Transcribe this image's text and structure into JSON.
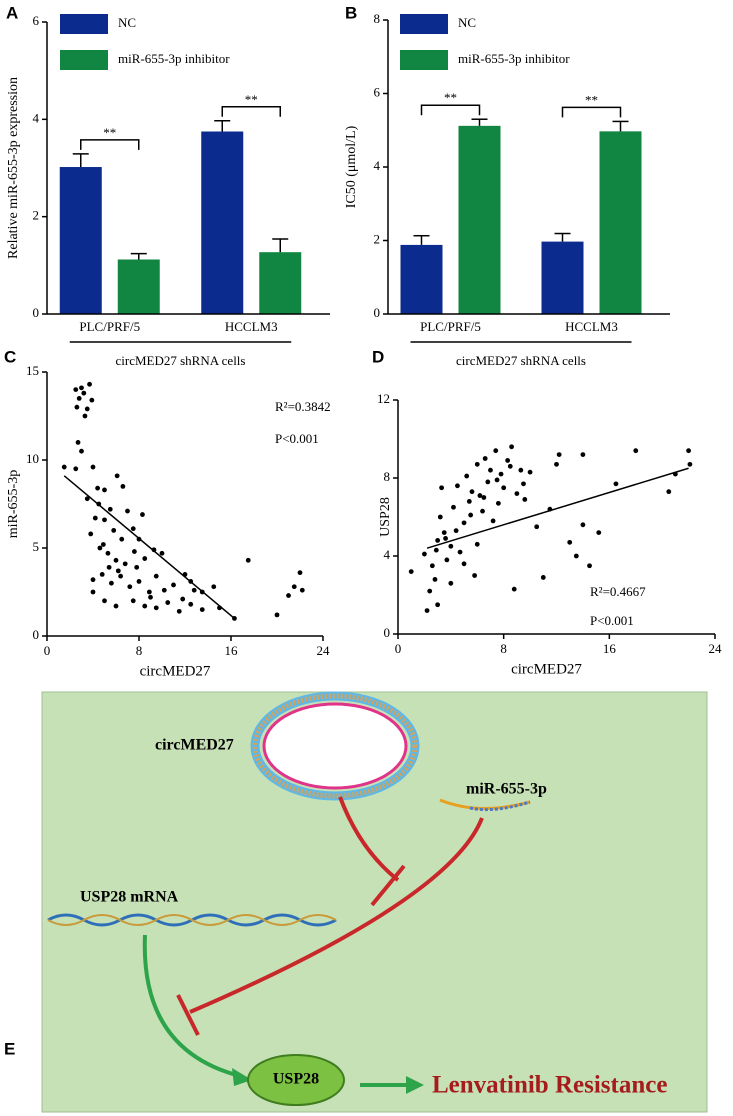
{
  "chart_data": [
    {
      "type": "bar",
      "panel": "A",
      "y_label": "Relative miR-655-3p expression",
      "group_label": "circMED27 shRNA cells",
      "categories": [
        "PLC/PRF/5",
        "HCCLM3"
      ],
      "ylim": [
        0,
        6
      ],
      "yticks": [
        0,
        2,
        4,
        6
      ],
      "legend": "upper left",
      "series": [
        {
          "name": "NC",
          "color": "#0b2c8e",
          "values": [
            3.02,
            3.75
          ],
          "errors": [
            0.27,
            0.22
          ]
        },
        {
          "name": "miR-655-3p inhibitor",
          "color": "#118642",
          "values": [
            1.12,
            1.27
          ],
          "errors": [
            0.12,
            0.27
          ]
        }
      ],
      "significance": [
        "**",
        "**"
      ]
    },
    {
      "type": "bar",
      "panel": "B",
      "y_label": "IC50  (μmol/L)",
      "group_label": "circMED27 shRNA cells",
      "categories": [
        "PLC/PRF/5",
        "HCCLM3"
      ],
      "ylim": [
        0,
        8
      ],
      "yticks": [
        0,
        2,
        4,
        6,
        8
      ],
      "legend": "upper left",
      "series": [
        {
          "name": "NC",
          "color": "#0b2c8e",
          "values": [
            1.88,
            1.97
          ],
          "errors": [
            0.25,
            0.22
          ]
        },
        {
          "name": "miR-655-3p inhibitor",
          "color": "#118642",
          "values": [
            5.12,
            4.97
          ],
          "errors": [
            0.18,
            0.27
          ]
        }
      ],
      "significance": [
        "**",
        "**"
      ]
    },
    {
      "type": "scatter",
      "panel": "C",
      "x_label": "circMED27",
      "y_label": "miR-655-3p",
      "color": "#000000",
      "xlim": [
        0,
        24
      ],
      "xticks": [
        0,
        8,
        16,
        24
      ],
      "ylim": [
        0,
        15
      ],
      "yticks": [
        0,
        5,
        10,
        15
      ],
      "annotations": [
        "R²=0.3842",
        "P<0.001"
      ],
      "fit": {
        "x": [
          1.5,
          16.3
        ],
        "y": [
          9.1,
          1.0
        ]
      },
      "x": [
        1.5,
        2.5,
        2.6,
        2.8,
        3,
        3.2,
        3.3,
        3.5,
        3.7,
        3.9,
        2.7,
        3,
        2.5,
        4,
        4.4,
        5,
        4.5,
        5.5,
        6.1,
        6.6,
        3.5,
        4.2,
        5,
        5.8,
        6.5,
        7,
        7.5,
        8,
        8.3,
        4.6,
        5.3,
        6,
        6.8,
        7.6,
        8.5,
        9.3,
        10,
        4,
        4.8,
        5.6,
        6.4,
        7.2,
        8,
        8.9,
        9.5,
        10.2,
        11,
        12,
        12.5,
        13.5,
        4,
        5,
        6,
        7.5,
        8.5,
        9.5,
        10.5,
        11.5,
        12.5,
        13.5,
        14.5,
        15,
        16.3,
        17.5,
        20,
        21,
        21.5,
        22,
        22.2,
        3.8,
        4.9,
        5.4,
        6.2,
        7.8,
        9,
        11.8,
        12.8
      ],
      "y": [
        9.6,
        14,
        13,
        13.5,
        14.1,
        13.8,
        12.5,
        12.9,
        14.3,
        13.4,
        11,
        10.5,
        9.5,
        9.6,
        8.4,
        8.3,
        7.5,
        7.2,
        9.1,
        8.5,
        7.8,
        6.7,
        6.6,
        6,
        5.5,
        7.1,
        6.1,
        5.5,
        6.9,
        5,
        4.7,
        4.3,
        4.1,
        4.8,
        4.4,
        4.9,
        4.7,
        3.2,
        3.5,
        3,
        3.4,
        2.8,
        3.1,
        2.5,
        3.4,
        2.6,
        2.9,
        3.5,
        3.1,
        2.5,
        2.5,
        2,
        1.7,
        2,
        1.7,
        1.6,
        1.9,
        1.4,
        1.8,
        1.5,
        2.8,
        1.6,
        1,
        4.3,
        1.2,
        2.3,
        2.8,
        3.6,
        2.6,
        5.8,
        5.2,
        3.9,
        3.7,
        3.9,
        2.2,
        2.1,
        2.6
      ]
    },
    {
      "type": "scatter",
      "panel": "D",
      "x_label": "circMED27",
      "y_label": "USP28",
      "color": "#000000",
      "xlim": [
        0,
        24
      ],
      "xticks": [
        0,
        8,
        16,
        24
      ],
      "ylim": [
        0,
        12
      ],
      "yticks": [
        0,
        4,
        8,
        12
      ],
      "annotations": [
        "R²=0.4667",
        "P<0.001"
      ],
      "fit": {
        "x": [
          2.2,
          22
        ],
        "y": [
          4.4,
          8.5
        ]
      },
      "x": [
        1,
        2,
        2.2,
        2.4,
        2.6,
        2.8,
        3,
        3.2,
        3.3,
        3.5,
        3.7,
        4,
        4.2,
        4.5,
        4.7,
        5,
        5.2,
        5.4,
        5.6,
        5.8,
        6,
        6.2,
        6.4,
        6.6,
        6.8,
        7,
        7.2,
        7.4,
        7.6,
        7.8,
        8,
        8.3,
        8.6,
        8.8,
        9,
        9.3,
        9.6,
        10,
        10.5,
        11,
        11.5,
        12,
        12.2,
        13,
        13.5,
        14,
        14,
        14.5,
        15.2,
        16.5,
        18,
        20.5,
        21,
        22,
        22.1,
        4,
        5,
        6,
        3,
        4.4,
        5.5,
        6.5,
        7.5,
        8.5,
        9.5,
        3.6,
        2.9
      ],
      "y": [
        3.2,
        4.1,
        1.2,
        2.2,
        3.5,
        2.8,
        4.8,
        6,
        7.5,
        5.2,
        3.8,
        4.5,
        6.5,
        7.6,
        4.2,
        5.7,
        8.1,
        6.8,
        7.3,
        3,
        8.7,
        7.1,
        6.3,
        9,
        7.8,
        8.4,
        5.8,
        9.4,
        6.7,
        8.2,
        7.5,
        8.9,
        9.6,
        2.3,
        7.2,
        8.4,
        6.9,
        8.3,
        5.5,
        2.9,
        6.4,
        8.7,
        9.2,
        4.7,
        4,
        5.6,
        9.2,
        3.5,
        5.2,
        7.7,
        9.4,
        7.3,
        8.2,
        9.4,
        8.7,
        2.6,
        3.6,
        4.6,
        1.5,
        5.3,
        6.1,
        7,
        7.9,
        8.6,
        7.7,
        4.9,
        4.3
      ]
    }
  ],
  "diagram": {
    "panel": "E",
    "nodes": [
      "circMED27",
      "miR-655-3p",
      "USP28 mRNA",
      "USP28",
      "Lenvatinib Resistance"
    ]
  }
}
